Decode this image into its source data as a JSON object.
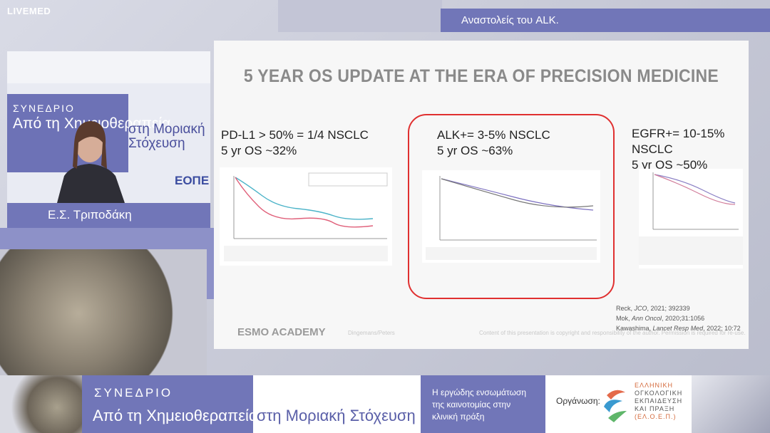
{
  "header": {
    "logo": "LIVEMED",
    "topic": "Αναστολείς του ALK."
  },
  "slide": {
    "title": "5 YEAR OS UPDATE AT THE ERA  OF PRECISION MEDICINE",
    "panels": [
      {
        "line1": "PD-L1 > 50% = 1/4 NSCLC",
        "line2": "5 yr OS ~32%"
      },
      {
        "line1": "ALK+= 3-5% NSCLC",
        "line2": "5 yr OS ~63%"
      },
      {
        "line1": "EGFR+= 10-15% NSCLC",
        "line2": "5 yr OS ~50%"
      }
    ],
    "references": [
      {
        "author": "Reck, ",
        "journal": "JCO",
        "detail": ", 2021; 392339"
      },
      {
        "author": "Mok, ",
        "journal": "Ann Oncol",
        "detail": ", 2020;31:1056"
      },
      {
        "author": "Kawashima, ",
        "journal": "Lancet Resp Med",
        "detail": ", 2022; 10:72"
      }
    ],
    "footer": {
      "brand": "ESMO ACADEMY",
      "authors": "Dingemans/Peters",
      "notice": "Content of this presentation is copyright and responsibility of the author. Permission is required for re-use."
    }
  },
  "speaker": {
    "name": "Ε.Σ. Τριποδάκη",
    "backdrop": {
      "event": "ΣΥΝΕΔΡΙΟ",
      "line1": "Από τη Χημειοθεραπεία",
      "line2": "στη Μοριακή Στόχευση",
      "logo": "ΕΟΠΕ"
    }
  },
  "banner": {
    "event": "ΣΥΝΕΔΡΙΟ",
    "title_part1": "Από τη Χημειοθεραπεία",
    "title_part2": "στη Μοριακή Στόχευση",
    "tagline": [
      "Η εργώδης ενσωμάτωση",
      "της καινοτομίας στην",
      "κλινική πράξη"
    ],
    "organizer_label": "Οργάνωση:",
    "organizer": [
      "ΕΛΛΗΝΙΚΗ",
      "ΟΓΚΟΛΟΓΙΚΗ",
      "ΕΚΠΑΙΔΕΥΣΗ",
      "ΚΑΙ ΠΡΑΞΗ",
      "(ΕΛ.Ο.Ε.Π.)"
    ]
  }
}
